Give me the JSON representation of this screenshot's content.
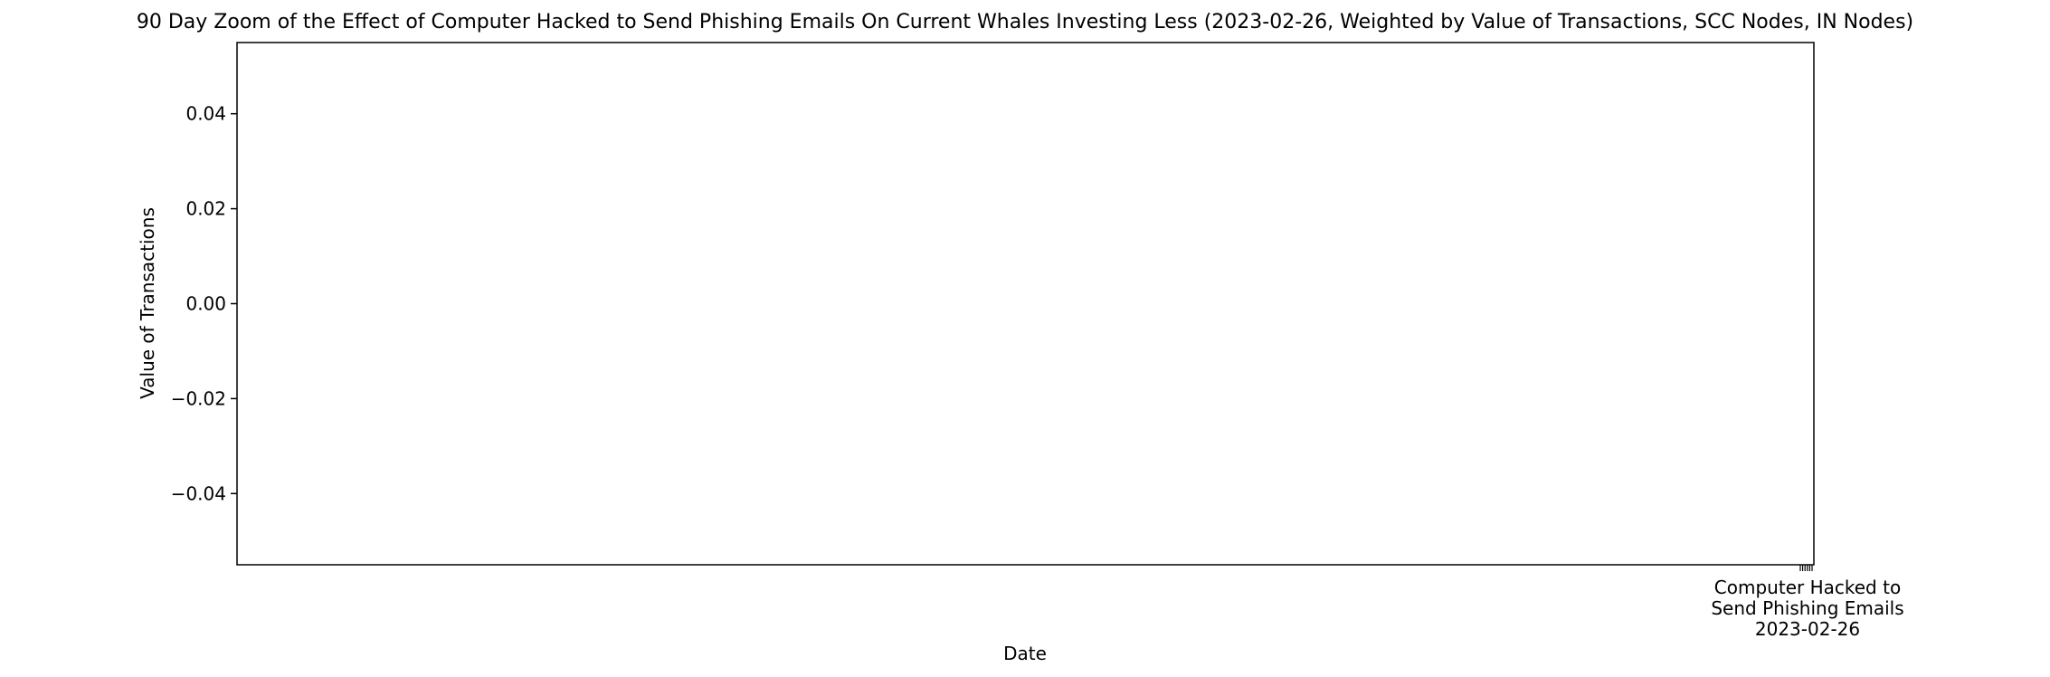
{
  "chart_data": {
    "type": "line",
    "title": "90 Day Zoom of the Effect of Computer Hacked to Send Phishing Emails On Current Whales Investing Less (2023-02-26, Weighted by Value of Transactions, SCC Nodes, IN Nodes)",
    "xlabel": "Date",
    "ylabel": "Value of Transactions",
    "ylim": [
      -0.055,
      0.055
    ],
    "yticks": [
      -0.04,
      -0.02,
      0.0,
      0.02,
      0.04
    ],
    "ytick_labels": [
      "−0.04",
      "−0.02",
      "0.00",
      "0.02",
      "0.04"
    ],
    "series": [],
    "grid": false,
    "event_marker": {
      "label_lines": [
        "Computer Hacked to",
        "Send Phishing Emails",
        "2023-02-26"
      ],
      "date": "2023-02-26"
    }
  }
}
